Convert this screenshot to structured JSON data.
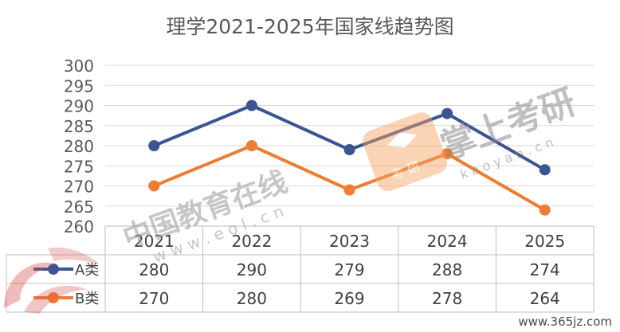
{
  "chart_data": {
    "type": "line",
    "title": "理学2021-2025年国家线趋势图",
    "categories": [
      "2021",
      "2022",
      "2023",
      "2024",
      "2025"
    ],
    "series": [
      {
        "name": "A类",
        "values": [
          280,
          290,
          279,
          288,
          274
        ],
        "color": "#3a5591"
      },
      {
        "name": "B类",
        "values": [
          270,
          280,
          269,
          278,
          264
        ],
        "color": "#ed7d31"
      }
    ],
    "ylim": [
      260,
      300
    ],
    "yticks": [
      300,
      295,
      290,
      285,
      280,
      275,
      270,
      265,
      260
    ],
    "grid": true,
    "legend": "data-table"
  },
  "watermarks": {
    "eol_name": "中国教育在线",
    "eol_url": "w w w . e o l . c n",
    "kaoyan_name": "掌上考研",
    "kaoyan_badge": "考 研",
    "kaoyan_url": "k a o y a n . c n",
    "site": "www.365jz.com"
  }
}
